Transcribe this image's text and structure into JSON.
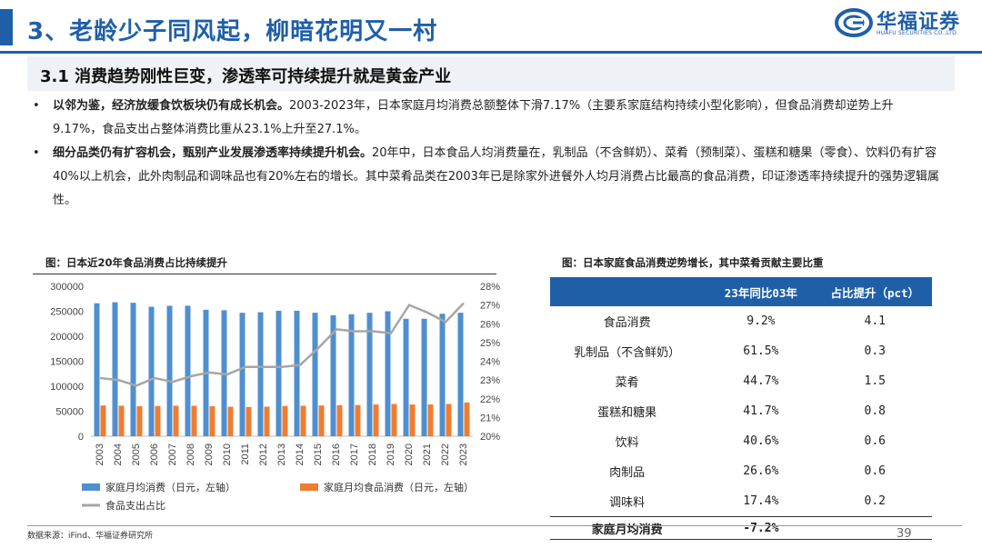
{
  "header": {
    "title": "3、老龄少子同风起，柳暗花明又一村",
    "logo_cn": "华福证券",
    "logo_en": "HUAFU SECURITIES CO.,LTD."
  },
  "section": {
    "title": "3.1 消费趋势刚性巨变，渗透率可持续提升就是黄金产业"
  },
  "bullets": [
    {
      "strong": "以邻为鉴，经济放缓食饮板块仍有成长机会。",
      "text": "2003-2023年，日本家庭月均消费总额整体下滑7.17%（主要系家庭结构持续小型化影响），但食品消费却逆势上升9.17%，食品支出占整体消费比重从23.1%上升至27.1%。"
    },
    {
      "strong": "细分品类仍有扩容机会，甄别产业发展渗透率持续提升机会。",
      "text": "20年中，日本食品人均消费量在，乳制品（不含鲜奶）、菜肴（预制菜）、蛋糕和糖果（零食）、饮料仍有扩容40%以上机会，此外肉制品和调味品也有20%左右的增长。其中菜肴品类在2003年已是除家外进餐外人均月消费占比最高的食品消费，印证渗透率持续提升的强势逻辑属性。"
    }
  ],
  "figure_left": {
    "title": "图：日本近20年食品消费占比持续提升"
  },
  "figure_right": {
    "title": "图：日本家庭食品消费逆势增长，其中菜肴贡献主要比重"
  },
  "chart_data": {
    "type": "bar",
    "categories": [
      "2003",
      "2004",
      "2005",
      "2006",
      "2007",
      "2008",
      "2009",
      "2010",
      "2011",
      "2012",
      "2013",
      "2014",
      "2015",
      "2016",
      "2017",
      "2018",
      "2019",
      "2020",
      "2021",
      "2022",
      "2023"
    ],
    "series": [
      {
        "name": "家庭月均消费（日元，左轴）",
        "type": "bar",
        "axis": "left",
        "color": "#4f8fd0",
        "values": [
          266000,
          268000,
          267000,
          259000,
          261000,
          261000,
          253000,
          252000,
          247000,
          248000,
          251000,
          251000,
          247000,
          242000,
          244000,
          247000,
          250000,
          235000,
          235000,
          245000,
          247000
        ]
      },
      {
        "name": "家庭月均食品消费（日元，左轴）",
        "type": "bar",
        "axis": "left",
        "color": "#ef7d31",
        "values": [
          61500,
          61000,
          60000,
          60500,
          61000,
          61000,
          60000,
          59000,
          58500,
          59000,
          60500,
          61000,
          61500,
          62000,
          62500,
          63500,
          64500,
          63500,
          63500,
          64500,
          67500
        ]
      },
      {
        "name": "食品支出占比",
        "type": "line",
        "axis": "right",
        "color": "#a6a6a6",
        "values": [
          23.1,
          23.0,
          22.7,
          23.1,
          22.9,
          23.2,
          23.4,
          23.3,
          23.7,
          23.7,
          23.7,
          23.8,
          24.7,
          25.7,
          25.6,
          25.6,
          25.5,
          27.0,
          26.6,
          26.1,
          27.1
        ]
      }
    ],
    "y_left": {
      "min": 0,
      "max": 300000,
      "ticks": [
        "0",
        "50000",
        "100000",
        "150000",
        "200000",
        "250000",
        "300000"
      ]
    },
    "y_right": {
      "min": 20,
      "max": 28,
      "ticks": [
        "20%",
        "21%",
        "22%",
        "23%",
        "24%",
        "25%",
        "26%",
        "27%",
        "28%"
      ]
    },
    "grid": false,
    "legend_position": "bottom"
  },
  "table": {
    "headers": [
      "",
      "23年同比03年",
      "占比提升（pct）"
    ],
    "rows": [
      [
        "食品消费",
        "9.2%",
        "4.1"
      ],
      [
        "乳制品（不含鲜奶）",
        "61.5%",
        "0.3"
      ],
      [
        "菜肴",
        "44.7%",
        "1.5"
      ],
      [
        "蛋糕和糖果",
        "41.7%",
        "0.8"
      ],
      [
        "饮料",
        "40.6%",
        "0.6"
      ],
      [
        "肉制品",
        "26.6%",
        "0.6"
      ],
      [
        "调味料",
        "17.4%",
        "0.2"
      ]
    ],
    "footer_row": [
      "家庭月均消费",
      "-7.2%",
      ""
    ]
  },
  "footer": {
    "source": "数据来源：iFind、华福证券研究所",
    "page": "39"
  },
  "colors": {
    "brand": "#1f5fa8",
    "bar_total": "#4f8fd0",
    "bar_food": "#ef7d31",
    "line": "#a6a6a6"
  }
}
